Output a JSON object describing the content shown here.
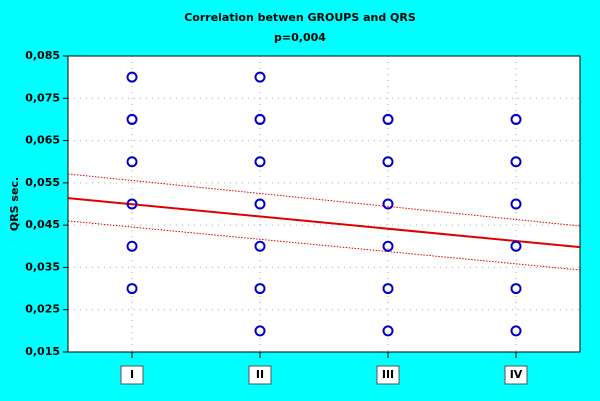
{
  "chart_data": {
    "type": "scatter",
    "title": "Correlation betwen GROUPS and QRS",
    "subtitle": "p=0,004",
    "y_label": "QRS sec.",
    "xlim": [
      0.5,
      4.5
    ],
    "xticks": [
      {
        "value": 1,
        "label": "I"
      },
      {
        "value": 2,
        "label": "II"
      },
      {
        "value": 3,
        "label": "III"
      },
      {
        "value": 4,
        "label": "IV"
      }
    ],
    "ylim": [
      0.015,
      0.085
    ],
    "yticks": [
      {
        "value": 0.015,
        "label": "0,015"
      },
      {
        "value": 0.025,
        "label": "0,025"
      },
      {
        "value": 0.035,
        "label": "0,035"
      },
      {
        "value": 0.045,
        "label": "0,045"
      },
      {
        "value": 0.055,
        "label": "0,055"
      },
      {
        "value": 0.065,
        "label": "0,065"
      },
      {
        "value": 0.075,
        "label": "0,075"
      },
      {
        "value": 0.085,
        "label": "0,085"
      }
    ],
    "grid": true,
    "points": {
      "color": "#0000cc",
      "x": [
        1,
        1,
        1,
        1,
        1,
        1,
        2,
        2,
        2,
        2,
        2,
        2,
        2,
        3,
        3,
        3,
        3,
        3,
        3,
        4,
        4,
        4,
        4,
        4,
        4
      ],
      "y": [
        0.08,
        0.07,
        0.06,
        0.05,
        0.04,
        0.03,
        0.08,
        0.07,
        0.06,
        0.05,
        0.04,
        0.03,
        0.02,
        0.07,
        0.06,
        0.05,
        0.04,
        0.03,
        0.02,
        0.07,
        0.06,
        0.05,
        0.04,
        0.03,
        0.02
      ]
    },
    "fit": {
      "color": "#e00000",
      "x": [
        0.5,
        4.5
      ],
      "y": [
        0.0514,
        0.0398
      ]
    },
    "confidence_upper": {
      "color": "#e00000",
      "x": [
        0.5,
        4.5
      ],
      "y": [
        0.0571,
        0.0448
      ]
    },
    "confidence_lower": {
      "color": "#e00000",
      "x": [
        0.5,
        4.5
      ],
      "y": [
        0.046,
        0.0344
      ]
    }
  }
}
